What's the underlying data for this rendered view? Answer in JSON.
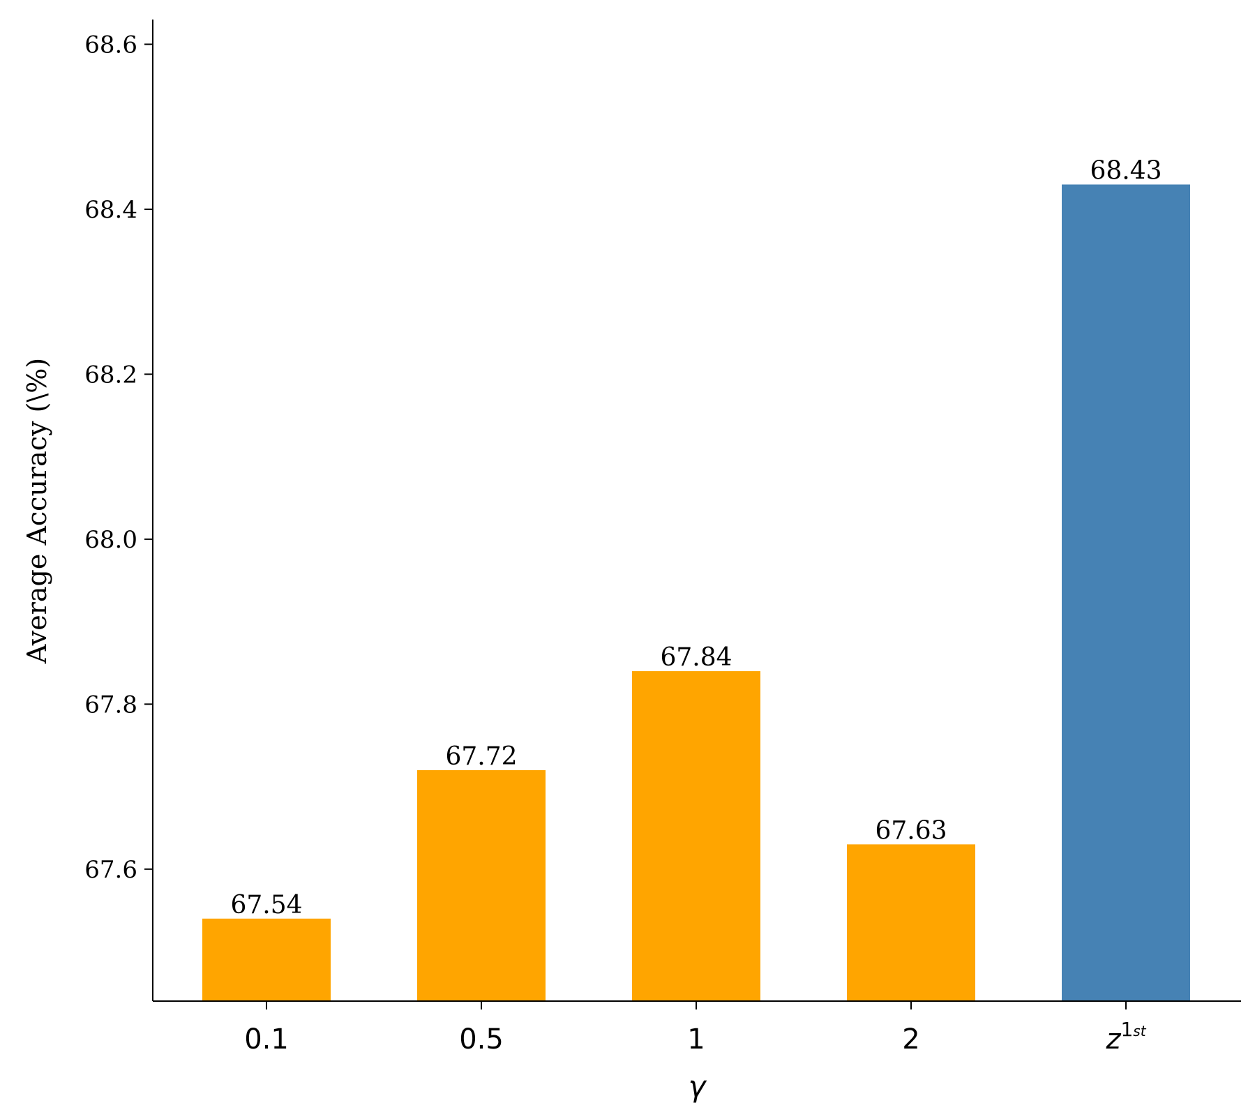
{
  "chart_data": {
    "type": "bar",
    "categories": [
      "0.1",
      "0.5",
      "1",
      "2",
      "z"
    ],
    "category_superscripts": [
      "",
      "",
      "",
      "",
      "1st"
    ],
    "values": [
      67.54,
      67.72,
      67.84,
      67.63,
      68.43
    ],
    "value_labels": [
      "67.54",
      "67.72",
      "67.84",
      "67.63",
      "68.43"
    ],
    "bar_colors": [
      "#FFA500",
      "#FFA500",
      "#FFA500",
      "#FFA500",
      "#4682B4"
    ],
    "title": "",
    "xlabel": "γ",
    "ylabel": "Average Accuracy (\\%)",
    "ylim": [
      67.44,
      68.63
    ],
    "yticks": [
      67.6,
      67.8,
      68.0,
      68.2,
      68.4,
      68.6
    ],
    "ytick_labels": [
      "67.6",
      "67.8",
      "68.0",
      "68.2",
      "68.4",
      "68.6"
    ],
    "grid": false,
    "legend": "none"
  }
}
